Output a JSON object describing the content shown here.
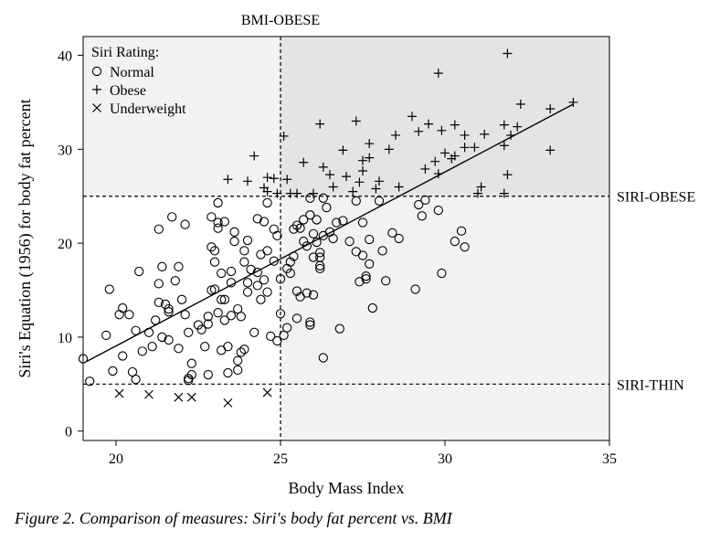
{
  "chart_data": {
    "type": "scatter",
    "title": "",
    "xlabel": "Body Mass Index",
    "ylabel": "Siri's Equation (1956) for body fat percent",
    "xlim": [
      19,
      35
    ],
    "ylim": [
      -1,
      42
    ],
    "xticks": [
      20,
      25,
      30,
      35
    ],
    "yticks": [
      0,
      10,
      20,
      30,
      40
    ],
    "grid": false,
    "legend": {
      "title": "Siri Rating:",
      "placement": "top-left",
      "entries": [
        {
          "name": "Normal",
          "marker": "circle"
        },
        {
          "name": "Obese",
          "marker": "plus"
        },
        {
          "name": "Underweight",
          "marker": "x"
        }
      ]
    },
    "reference_lines": [
      {
        "axis": "x",
        "value": 25,
        "label": "BMI-OBESE",
        "style": "dashed"
      },
      {
        "axis": "y",
        "value": 25,
        "label": "SIRI-OBESE",
        "style": "dashed"
      },
      {
        "axis": "y",
        "value": 5,
        "label": "SIRI-THIN",
        "style": "dashed"
      }
    ],
    "regions": [
      {
        "x": [
          19,
          25
        ],
        "y": [
          25,
          42
        ],
        "color": "#f2f2f2"
      },
      {
        "x": [
          25,
          35
        ],
        "y": [
          25,
          42
        ],
        "color": "#e4e4e4"
      },
      {
        "x": [
          25,
          35
        ],
        "y": [
          -1,
          25
        ],
        "color": "#f2f2f2"
      }
    ],
    "fit_line": {
      "x": [
        19.1,
        33.9
      ],
      "y": [
        7.4,
        34.8
      ]
    },
    "series": [
      {
        "name": "Normal",
        "marker": "circle",
        "points": [
          [
            19.0,
            7.7
          ],
          [
            19.2,
            5.3
          ],
          [
            19.7,
            10.2
          ],
          [
            19.8,
            15.1
          ],
          [
            19.9,
            6.4
          ],
          [
            20.1,
            12.4
          ],
          [
            20.2,
            13.1
          ],
          [
            20.2,
            8.0
          ],
          [
            20.4,
            12.4
          ],
          [
            20.5,
            6.3
          ],
          [
            20.6,
            5.5
          ],
          [
            20.6,
            10.7
          ],
          [
            20.7,
            17.0
          ],
          [
            20.8,
            8.5
          ],
          [
            21.0,
            10.5
          ],
          [
            21.1,
            9.0
          ],
          [
            21.2,
            11.8
          ],
          [
            21.3,
            15.7
          ],
          [
            21.3,
            21.5
          ],
          [
            21.3,
            13.7
          ],
          [
            21.4,
            17.5
          ],
          [
            21.4,
            10.0
          ],
          [
            21.5,
            13.5
          ],
          [
            21.6,
            9.7
          ],
          [
            21.6,
            13.0
          ],
          [
            21.6,
            12.7
          ],
          [
            21.7,
            22.8
          ],
          [
            21.8,
            16.0
          ],
          [
            21.9,
            17.5
          ],
          [
            21.9,
            8.8
          ],
          [
            22.0,
            14.0
          ],
          [
            22.1,
            12.4
          ],
          [
            22.1,
            22.0
          ],
          [
            22.2,
            10.5
          ],
          [
            22.2,
            5.4
          ],
          [
            22.2,
            5.6
          ],
          [
            22.3,
            7.2
          ],
          [
            22.3,
            6.0
          ],
          [
            22.5,
            11.3
          ],
          [
            22.6,
            10.8
          ],
          [
            22.7,
            9.0
          ],
          [
            22.8,
            6.0
          ],
          [
            22.8,
            12.2
          ],
          [
            22.8,
            11.4
          ],
          [
            22.9,
            15.0
          ],
          [
            22.9,
            19.6
          ],
          [
            22.9,
            22.8
          ],
          [
            23.0,
            15.1
          ],
          [
            23.0,
            18.0
          ],
          [
            23.0,
            19.2
          ],
          [
            23.1,
            21.6
          ],
          [
            23.1,
            24.3
          ],
          [
            23.1,
            22.2
          ],
          [
            23.1,
            12.6
          ],
          [
            23.2,
            8.6
          ],
          [
            23.2,
            16.8
          ],
          [
            23.2,
            14.0
          ],
          [
            23.3,
            11.8
          ],
          [
            23.3,
            14.0
          ],
          [
            23.3,
            22.3
          ],
          [
            23.4,
            9.0
          ],
          [
            23.4,
            6.2
          ],
          [
            23.5,
            17.0
          ],
          [
            23.5,
            15.8
          ],
          [
            23.5,
            12.3
          ],
          [
            23.6,
            20.2
          ],
          [
            23.6,
            21.2
          ],
          [
            23.7,
            13.0
          ],
          [
            23.7,
            6.5
          ],
          [
            23.7,
            7.5
          ],
          [
            23.8,
            8.4
          ],
          [
            23.8,
            12.2
          ],
          [
            23.9,
            8.7
          ],
          [
            23.9,
            18.0
          ],
          [
            23.9,
            19.2
          ],
          [
            24.0,
            15.8
          ],
          [
            24.0,
            14.8
          ],
          [
            24.0,
            20.3
          ],
          [
            24.1,
            17.2
          ],
          [
            24.2,
            10.5
          ],
          [
            24.3,
            22.6
          ],
          [
            24.3,
            15.5
          ],
          [
            24.3,
            16.9
          ],
          [
            24.4,
            18.8
          ],
          [
            24.4,
            14.0
          ],
          [
            24.5,
            22.3
          ],
          [
            24.5,
            16.1
          ],
          [
            24.6,
            24.3
          ],
          [
            24.6,
            14.8
          ],
          [
            24.6,
            19.2
          ],
          [
            24.7,
            10.1
          ],
          [
            24.8,
            21.5
          ],
          [
            24.8,
            18.1
          ],
          [
            24.9,
            20.8
          ],
          [
            24.9,
            9.6
          ],
          [
            25.0,
            12.5
          ],
          [
            25.0,
            16.2
          ],
          [
            25.1,
            10.2
          ],
          [
            25.2,
            11.0
          ],
          [
            25.2,
            17.3
          ],
          [
            25.3,
            16.8
          ],
          [
            25.3,
            18.0
          ],
          [
            25.4,
            18.6
          ],
          [
            25.4,
            21.5
          ],
          [
            25.5,
            21.9
          ],
          [
            25.5,
            12.0
          ],
          [
            25.5,
            14.9
          ],
          [
            25.6,
            21.6
          ],
          [
            25.6,
            14.3
          ],
          [
            25.7,
            20.2
          ],
          [
            25.7,
            22.5
          ],
          [
            25.8,
            19.7
          ],
          [
            25.8,
            14.7
          ],
          [
            25.9,
            11.3
          ],
          [
            25.9,
            11.6
          ],
          [
            25.9,
            23.0
          ],
          [
            25.9,
            24.8
          ],
          [
            26.0,
            18.5
          ],
          [
            26.0,
            21.0
          ],
          [
            26.0,
            14.5
          ],
          [
            26.1,
            22.5
          ],
          [
            26.1,
            20.1
          ],
          [
            26.2,
            17.6
          ],
          [
            26.2,
            17.3
          ],
          [
            26.2,
            19.0
          ],
          [
            26.2,
            18.5
          ],
          [
            26.3,
            7.8
          ],
          [
            26.3,
            20.8
          ],
          [
            26.3,
            24.8
          ],
          [
            26.4,
            23.8
          ],
          [
            26.5,
            21.2
          ],
          [
            26.6,
            20.5
          ],
          [
            26.7,
            22.2
          ],
          [
            26.8,
            10.9
          ],
          [
            26.9,
            22.4
          ],
          [
            27.1,
            20.2
          ],
          [
            27.3,
            19.1
          ],
          [
            27.3,
            24.5
          ],
          [
            27.4,
            15.9
          ],
          [
            27.5,
            18.7
          ],
          [
            27.5,
            22.2
          ],
          [
            27.6,
            16.5
          ],
          [
            27.6,
            16.2
          ],
          [
            27.7,
            20.4
          ],
          [
            27.7,
            17.8
          ],
          [
            27.8,
            13.1
          ],
          [
            28.0,
            24.5
          ],
          [
            28.1,
            19.2
          ],
          [
            28.2,
            16.0
          ],
          [
            28.4,
            21.1
          ],
          [
            28.6,
            20.5
          ],
          [
            29.1,
            15.1
          ],
          [
            29.2,
            24.1
          ],
          [
            29.3,
            22.9
          ],
          [
            29.4,
            24.6
          ],
          [
            29.8,
            23.5
          ],
          [
            29.9,
            16.8
          ],
          [
            30.3,
            20.2
          ],
          [
            30.5,
            21.3
          ],
          [
            30.6,
            19.6
          ]
        ]
      },
      {
        "name": "Obese",
        "marker": "plus",
        "points": [
          [
            23.4,
            26.8
          ],
          [
            24.0,
            26.6
          ],
          [
            24.2,
            29.3
          ],
          [
            24.5,
            25.9
          ],
          [
            24.6,
            27.0
          ],
          [
            24.6,
            25.5
          ],
          [
            24.8,
            26.9
          ],
          [
            24.9,
            25.3
          ],
          [
            25.1,
            31.4
          ],
          [
            25.2,
            26.8
          ],
          [
            25.3,
            25.3
          ],
          [
            25.5,
            25.3
          ],
          [
            25.7,
            28.6
          ],
          [
            26.0,
            25.3
          ],
          [
            26.3,
            28.1
          ],
          [
            26.2,
            32.7
          ],
          [
            26.5,
            27.3
          ],
          [
            26.6,
            26.0
          ],
          [
            26.9,
            29.9
          ],
          [
            27.0,
            27.1
          ],
          [
            27.2,
            25.5
          ],
          [
            27.3,
            33.0
          ],
          [
            27.4,
            26.5
          ],
          [
            27.5,
            28.8
          ],
          [
            27.5,
            27.7
          ],
          [
            27.7,
            30.6
          ],
          [
            27.7,
            29.1
          ],
          [
            27.9,
            25.8
          ],
          [
            28.0,
            26.6
          ],
          [
            28.3,
            30.0
          ],
          [
            28.5,
            31.5
          ],
          [
            28.6,
            26.0
          ],
          [
            29.0,
            33.5
          ],
          [
            29.2,
            31.9
          ],
          [
            29.4,
            27.9
          ],
          [
            29.5,
            32.7
          ],
          [
            29.7,
            28.7
          ],
          [
            29.8,
            27.4
          ],
          [
            29.8,
            38.1
          ],
          [
            29.9,
            32.0
          ],
          [
            30.0,
            29.6
          ],
          [
            30.2,
            29.0
          ],
          [
            30.3,
            29.3
          ],
          [
            30.3,
            32.6
          ],
          [
            30.6,
            31.5
          ],
          [
            30.6,
            30.2
          ],
          [
            30.9,
            30.2
          ],
          [
            31.0,
            25.3
          ],
          [
            31.1,
            26.0
          ],
          [
            31.2,
            31.6
          ],
          [
            31.8,
            25.3
          ],
          [
            31.8,
            30.4
          ],
          [
            31.8,
            32.6
          ],
          [
            31.9,
            40.2
          ],
          [
            31.9,
            27.3
          ],
          [
            32.0,
            31.5
          ],
          [
            32.2,
            32.4
          ],
          [
            32.3,
            34.8
          ],
          [
            33.2,
            34.3
          ],
          [
            33.2,
            29.9
          ],
          [
            33.9,
            35.0
          ]
        ]
      },
      {
        "name": "Underweight",
        "marker": "x",
        "points": [
          [
            20.1,
            4.0
          ],
          [
            21.0,
            3.9
          ],
          [
            21.9,
            3.6
          ],
          [
            22.3,
            3.6
          ],
          [
            23.4,
            3.0
          ],
          [
            24.6,
            4.1
          ]
        ]
      }
    ]
  },
  "caption": "Figure 2. Comparison of measures: Siri's body fat percent vs. BMI"
}
